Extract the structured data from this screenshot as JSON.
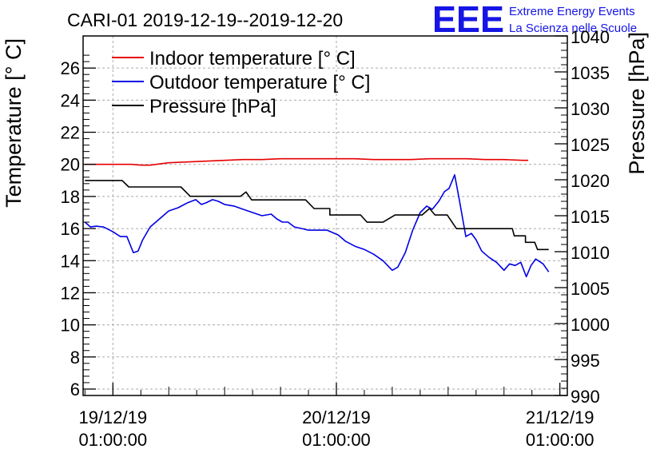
{
  "chart_data": {
    "type": "line",
    "title": "CARI-01 2019-12-19--2019-12-20",
    "y_left_label": "Temperature [° C]",
    "y_right_label": "Pressure [hPa]",
    "y_left_range": [
      5.6,
      28
    ],
    "y_right_range": [
      990,
      1040
    ],
    "y_left_ticks": [
      "6",
      "8",
      "10",
      "12",
      "14",
      "16",
      "18",
      "20",
      "22",
      "24",
      "26"
    ],
    "y_right_ticks": [
      "990",
      "995",
      "1000",
      "1005",
      "1010",
      "1015",
      "1020",
      "1025",
      "1030",
      "1035",
      "1040"
    ],
    "x_range_hours": [
      -3.2,
      48.8
    ],
    "x_ticks": [
      {
        "hours": 0,
        "date": "19/12/19",
        "time": "01:00:00"
      },
      {
        "hours": 24,
        "date": "20/12/19",
        "time": "01:00:00"
      },
      {
        "hours": 48,
        "date": "21/12/19",
        "time": "01:00:00"
      }
    ],
    "grid": true,
    "legend_position": "top-left",
    "series": [
      {
        "name": "Indoor temperature [° C]",
        "color": "#e60000",
        "axis": "left",
        "points": [
          [
            -3,
            20.0
          ],
          [
            0,
            20.0
          ],
          [
            2,
            20.0
          ],
          [
            3,
            19.95
          ],
          [
            4,
            19.95
          ],
          [
            6,
            20.1
          ],
          [
            8,
            20.15
          ],
          [
            10,
            20.2
          ],
          [
            12,
            20.25
          ],
          [
            14,
            20.3
          ],
          [
            16,
            20.3
          ],
          [
            18,
            20.35
          ],
          [
            20,
            20.35
          ],
          [
            22,
            20.35
          ],
          [
            24,
            20.35
          ],
          [
            26,
            20.35
          ],
          [
            28,
            20.3
          ],
          [
            30,
            20.3
          ],
          [
            32,
            20.3
          ],
          [
            34,
            20.35
          ],
          [
            36,
            20.35
          ],
          [
            38,
            20.35
          ],
          [
            40,
            20.3
          ],
          [
            42,
            20.3
          ],
          [
            44,
            20.25
          ],
          [
            44.6,
            20.25
          ]
        ]
      },
      {
        "name": "Outdoor temperature [° C]",
        "color": "#0000e6",
        "axis": "left",
        "points": [
          [
            -3,
            16.4
          ],
          [
            -2.4,
            16.1
          ],
          [
            -1.8,
            16.15
          ],
          [
            -1,
            16.1
          ],
          [
            0,
            15.8
          ],
          [
            0.8,
            15.5
          ],
          [
            1.5,
            15.5
          ],
          [
            2.2,
            14.5
          ],
          [
            2.7,
            14.6
          ],
          [
            3.2,
            15.3
          ],
          [
            4,
            16.1
          ],
          [
            5,
            16.6
          ],
          [
            6,
            17.1
          ],
          [
            7,
            17.3
          ],
          [
            8,
            17.6
          ],
          [
            8.9,
            17.8
          ],
          [
            9.5,
            17.5
          ],
          [
            10,
            17.6
          ],
          [
            10.7,
            17.8
          ],
          [
            11.3,
            17.7
          ],
          [
            12,
            17.5
          ],
          [
            13,
            17.4
          ],
          [
            14,
            17.2
          ],
          [
            15,
            17.0
          ],
          [
            16,
            16.8
          ],
          [
            17,
            16.9
          ],
          [
            17.6,
            16.6
          ],
          [
            18.2,
            16.4
          ],
          [
            18.8,
            16.4
          ],
          [
            19.5,
            16.1
          ],
          [
            20.3,
            16.0
          ],
          [
            21,
            15.9
          ],
          [
            22,
            15.9
          ],
          [
            23,
            15.9
          ],
          [
            24.2,
            15.6
          ],
          [
            25,
            15.2
          ],
          [
            26,
            14.9
          ],
          [
            27,
            14.7
          ],
          [
            28,
            14.4
          ],
          [
            29,
            14.0
          ],
          [
            30,
            13.4
          ],
          [
            30.6,
            13.6
          ],
          [
            31.4,
            14.5
          ],
          [
            32.2,
            15.9
          ],
          [
            33,
            17.0
          ],
          [
            33.7,
            17.4
          ],
          [
            34.3,
            17.2
          ],
          [
            35,
            17.7
          ],
          [
            35.6,
            18.3
          ],
          [
            36.1,
            18.5
          ],
          [
            36.7,
            19.35
          ],
          [
            37.2,
            17.8
          ],
          [
            37.9,
            15.5
          ],
          [
            38.5,
            15.7
          ],
          [
            39,
            15.3
          ],
          [
            39.6,
            14.6
          ],
          [
            40.4,
            14.2
          ],
          [
            41.2,
            13.9
          ],
          [
            42,
            13.4
          ],
          [
            42.6,
            13.8
          ],
          [
            43.2,
            13.7
          ],
          [
            43.8,
            13.9
          ],
          [
            44.4,
            13.0
          ],
          [
            44.9,
            13.7
          ],
          [
            45.4,
            14.1
          ],
          [
            46.2,
            13.8
          ],
          [
            46.8,
            13.3
          ]
        ]
      },
      {
        "name": "Pressure [hPa]",
        "color": "#000000",
        "axis": "right",
        "points": [
          [
            -3,
            1019.9
          ],
          [
            1,
            1019.9
          ],
          [
            1.7,
            1019.0
          ],
          [
            7.3,
            1019.0
          ],
          [
            8.3,
            1017.7
          ],
          [
            13.7,
            1017.7
          ],
          [
            14.3,
            1018.3
          ],
          [
            14.9,
            1017.2
          ],
          [
            20.7,
            1017.2
          ],
          [
            21.6,
            1016.0
          ],
          [
            23.3,
            1016.0
          ],
          [
            23.3,
            1015.1
          ],
          [
            26.6,
            1015.1
          ],
          [
            27.3,
            1014.1
          ],
          [
            29.0,
            1014.1
          ],
          [
            30.3,
            1015.1
          ],
          [
            33.2,
            1015.1
          ],
          [
            34.0,
            1016.0
          ],
          [
            34.6,
            1015.1
          ],
          [
            35.9,
            1015.1
          ],
          [
            36.9,
            1013.2
          ],
          [
            42.9,
            1013.2
          ],
          [
            43.1,
            1012.2
          ],
          [
            44.3,
            1012.2
          ],
          [
            44.3,
            1011.3
          ],
          [
            45.3,
            1011.3
          ],
          [
            45.6,
            1010.3
          ],
          [
            46.8,
            1010.3
          ]
        ]
      }
    ]
  },
  "logo": {
    "mark": "EEE",
    "line1": "Extreme Energy Events",
    "line2": "La Scienza nelle Scuole"
  }
}
